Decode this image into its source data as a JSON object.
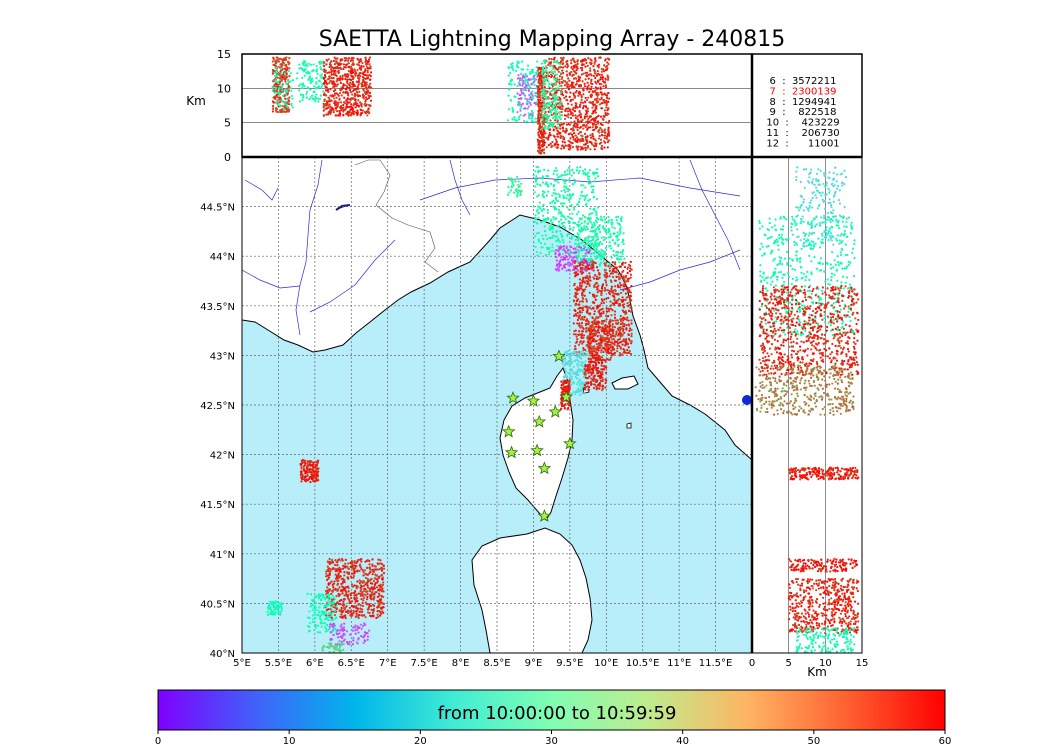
{
  "title": "SAETTA Lightning Mapping Array - 240815",
  "colors": {
    "sea": "#b8eefa",
    "land": "#ffffff",
    "rivers": "#2b2bd8",
    "grid": "#666666",
    "station": "#a6f04a",
    "station_edge": "#2a6a00",
    "highlight_count": "#ff0000"
  },
  "chart_data": [
    {
      "id": "altitude-vs-longitude",
      "type": "scatter",
      "ylabel": "Km",
      "xlim": [
        5,
        12.5
      ],
      "ylim": [
        0,
        15
      ],
      "yticks": [
        "0",
        "5",
        "10",
        "15"
      ],
      "hgrid": [
        5,
        10
      ],
      "clusters": [
        {
          "lon": [
            5.45,
            5.7
          ],
          "alt": [
            6.5,
            14.5
          ],
          "t": 55,
          "n": 260
        },
        {
          "lon": [
            5.45,
            5.75
          ],
          "alt": [
            7,
            13
          ],
          "t": 30,
          "n": 60
        },
        {
          "lon": [
            5.8,
            6.2
          ],
          "alt": [
            8,
            14
          ],
          "t": 32,
          "n": 120
        },
        {
          "lon": [
            6.2,
            6.9
          ],
          "alt": [
            6,
            14.5
          ],
          "t": 57,
          "n": 600
        },
        {
          "lon": [
            8.9,
            9.4
          ],
          "alt": [
            5,
            14
          ],
          "t": 30,
          "n": 160
        },
        {
          "lon": [
            9.05,
            9.35
          ],
          "alt": [
            6,
            12
          ],
          "t": 8,
          "n": 80
        },
        {
          "lon": [
            9.35,
            9.45
          ],
          "alt": [
            0.5,
            13
          ],
          "t": 57,
          "n": 260
        },
        {
          "lon": [
            9.45,
            10.4
          ],
          "alt": [
            1,
            14.5
          ],
          "t": 57,
          "n": 900
        },
        {
          "lon": [
            9.4,
            9.7
          ],
          "alt": [
            4,
            14
          ],
          "t": 35,
          "n": 200
        }
      ]
    },
    {
      "id": "lat-lon-map",
      "type": "scatter",
      "xlim": [
        5,
        12
      ],
      "ylim": [
        40,
        45
      ],
      "xticks": [
        "5°E",
        "5.5°E",
        "6°E",
        "6.5°E",
        "7°E",
        "7.5°E",
        "8°E",
        "8.5°E",
        "9°E",
        "9.5°E",
        "10°E",
        "10.5°E",
        "11°E",
        "11.5°E"
      ],
      "yticks": [
        "40°N",
        "40.5°N",
        "41°N",
        "41.5°N",
        "42°N",
        "42.5°N",
        "43°N",
        "43.5°N",
        "44°N",
        "44.5°N"
      ],
      "clusters": [
        {
          "lon": [
            9.0,
            9.9
          ],
          "lat": [
            44.0,
            44.9
          ],
          "t": 32,
          "n": 420
        },
        {
          "lon": [
            8.65,
            8.85
          ],
          "lat": [
            44.6,
            44.8
          ],
          "t": 36,
          "n": 40
        },
        {
          "lon": [
            9.3,
            9.8
          ],
          "lat": [
            43.85,
            44.1
          ],
          "t": 5,
          "n": 140
        },
        {
          "lon": [
            9.6,
            10.25
          ],
          "lat": [
            43.9,
            44.4
          ],
          "t": 32,
          "n": 260
        },
        {
          "lon": [
            9.55,
            10.35
          ],
          "lat": [
            43.0,
            43.95
          ],
          "t": 57,
          "n": 750
        },
        {
          "lon": [
            9.75,
            10.1
          ],
          "lat": [
            42.95,
            43.35
          ],
          "t": 57,
          "n": 220
        },
        {
          "lon": [
            9.4,
            9.75
          ],
          "lat": [
            42.6,
            43.05
          ],
          "t": 20,
          "n": 200
        },
        {
          "lon": [
            9.7,
            10.0
          ],
          "lat": [
            42.65,
            42.98
          ],
          "t": 58,
          "n": 180
        },
        {
          "lon": [
            9.38,
            9.5
          ],
          "lat": [
            42.45,
            42.75
          ],
          "t": 58,
          "n": 120
        },
        {
          "lon": [
            5.8,
            6.05
          ],
          "lat": [
            41.72,
            41.95
          ],
          "t": 58,
          "n": 140
        },
        {
          "lon": [
            5.35,
            5.55
          ],
          "lat": [
            40.38,
            40.52
          ],
          "t": 30,
          "n": 70
        },
        {
          "lon": [
            6.15,
            6.95
          ],
          "lat": [
            40.35,
            40.95
          ],
          "t": 57,
          "n": 600
        },
        {
          "lon": [
            5.9,
            6.3
          ],
          "lat": [
            40.2,
            40.6
          ],
          "t": 30,
          "n": 140
        },
        {
          "lon": [
            6.2,
            6.75
          ],
          "lat": [
            40.08,
            40.3
          ],
          "t": 6,
          "n": 100
        },
        {
          "lon": [
            6.1,
            6.4
          ],
          "lat": [
            40.0,
            40.1
          ],
          "t": 40,
          "n": 40
        }
      ],
      "stations": [
        [
          9.35,
          42.99
        ],
        [
          8.72,
          42.57
        ],
        [
          9.0,
          42.54
        ],
        [
          9.45,
          42.58
        ],
        [
          8.66,
          42.23
        ],
        [
          9.08,
          42.33
        ],
        [
          9.3,
          42.43
        ],
        [
          8.7,
          42.02
        ],
        [
          9.05,
          42.04
        ],
        [
          9.5,
          42.11
        ],
        [
          9.15,
          41.86
        ],
        [
          9.15,
          41.38
        ]
      ]
    },
    {
      "id": "latitude-vs-altitude",
      "type": "scatter",
      "xlabel": "Km",
      "xlim": [
        0,
        15
      ],
      "ylim": [
        40,
        45
      ],
      "xticks": [
        "0",
        "5",
        "10",
        "15"
      ],
      "vgrid": [
        5,
        10
      ],
      "clusters": [
        {
          "alt": [
            6,
            13
          ],
          "lat": [
            44.1,
            44.9
          ],
          "t": 20,
          "n": 200
        },
        {
          "alt": [
            1,
            14
          ],
          "lat": [
            43.2,
            44.4
          ],
          "t": 30,
          "n": 500
        },
        {
          "alt": [
            1,
            14.5
          ],
          "lat": [
            42.8,
            43.7
          ],
          "t": 57,
          "n": 800
        },
        {
          "alt": [
            0.5,
            14
          ],
          "lat": [
            42.4,
            42.9
          ],
          "t": 50,
          "n": 400
        },
        {
          "alt": [
            5,
            14.5
          ],
          "lat": [
            41.75,
            41.87
          ],
          "t": 58,
          "n": 220
        },
        {
          "alt": [
            5,
            14.5
          ],
          "lat": [
            40.82,
            40.95
          ],
          "t": 58,
          "n": 160
        },
        {
          "alt": [
            5,
            14.5
          ],
          "lat": [
            40.2,
            40.75
          ],
          "t": 57,
          "n": 500
        },
        {
          "alt": [
            6,
            14
          ],
          "lat": [
            40.0,
            40.25
          ],
          "t": 30,
          "n": 160
        }
      ]
    }
  ],
  "counts": [
    {
      "label": "6  :  3572211",
      "highlight": false
    },
    {
      "label": "7  :  2300139",
      "highlight": true
    },
    {
      "label": "8  :  1294941",
      "highlight": false
    },
    {
      "label": "9  :    822518",
      "highlight": false
    },
    {
      "label": "10  :    423229",
      "highlight": false
    },
    {
      "label": "11  :    206730",
      "highlight": false
    },
    {
      "label": "12  :      11001",
      "highlight": false
    }
  ],
  "colorbar": {
    "label": "from 10:00:00 to 10:59:59",
    "min": 0,
    "max": 60,
    "ticks": [
      "0",
      "10",
      "20",
      "30",
      "40",
      "50",
      "60"
    ],
    "colormap": "rainbow"
  }
}
